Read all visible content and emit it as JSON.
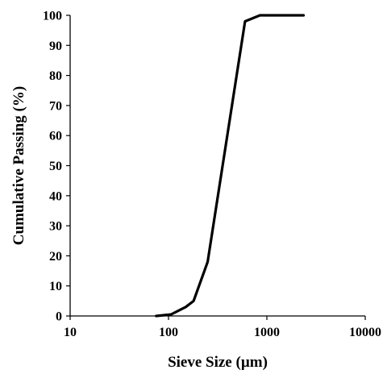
{
  "chart_data": {
    "type": "line",
    "title": "",
    "xlabel": "Sieve Size (µm)",
    "ylabel": "Cumulative Passing (%)",
    "x_scale": "log",
    "xlim": [
      10,
      10000
    ],
    "ylim": [
      0,
      100
    ],
    "x_ticks": [
      10,
      100,
      1000,
      10000
    ],
    "x_tick_labels": [
      "10",
      "100",
      "1000",
      "10000"
    ],
    "y_ticks": [
      0,
      10,
      20,
      30,
      40,
      50,
      60,
      70,
      80,
      90,
      100
    ],
    "y_tick_labels": [
      "0",
      "10",
      "20",
      "30",
      "40",
      "50",
      "60",
      "70",
      "80",
      "90",
      "100"
    ],
    "grid": false,
    "legend": "none",
    "series": [
      {
        "color": "#000000",
        "x": [
          75,
          106,
          150,
          180,
          250,
          600,
          850,
          2360
        ],
        "y": [
          0,
          0.5,
          3,
          5,
          18,
          98,
          100,
          100
        ]
      }
    ]
  }
}
